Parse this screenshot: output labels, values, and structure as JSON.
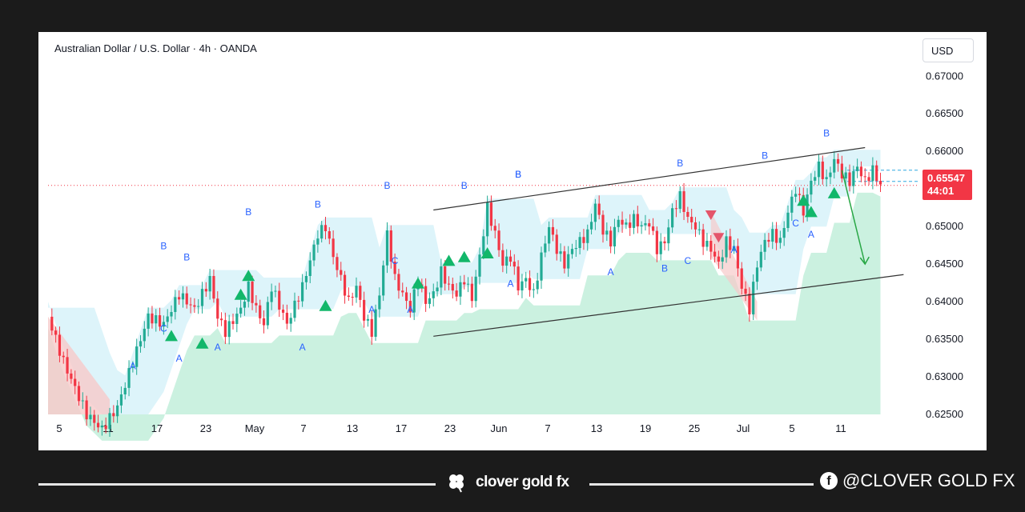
{
  "chart_title": "Australian Dollar / U.S. Dollar · 4h · OANDA",
  "currency_button": "USD",
  "price_tag": {
    "price": "0.65547",
    "countdown": "44:01",
    "color": "#f23645"
  },
  "footer": {
    "brand": "clover gold fx",
    "social": "@CLOVER GOLD FX"
  },
  "colors": {
    "up": "#22ab94",
    "down": "#f23645",
    "cloud_green": "#b9ecd6",
    "cloud_blue": "#d2f0f8",
    "cloud_red": "#f7c9c9",
    "label_blue": "#2962ff",
    "signal_green": "#12b76a"
  },
  "chart_data": {
    "type": "candlestick",
    "symbol": "AUDUSD",
    "timeframe": "4h",
    "ylim": [
      0.625,
      0.6712
    ],
    "y_ticks": [
      "0.67000",
      "0.66500",
      "0.66000",
      "0.65500",
      "0.65000",
      "0.64500",
      "0.64000",
      "0.63500",
      "0.63000",
      "0.62500"
    ],
    "x_ticks": [
      "5",
      "11",
      "17",
      "23",
      "May",
      "7",
      "13",
      "17",
      "23",
      "Jun",
      "7",
      "13",
      "19",
      "25",
      "Jul",
      "5",
      "11"
    ],
    "price_path": [
      [
        0,
        0.638
      ],
      [
        2,
        0.632
      ],
      [
        5,
        0.625
      ],
      [
        7,
        0.623
      ],
      [
        9,
        0.626
      ],
      [
        11,
        0.632
      ],
      [
        13,
        0.638
      ],
      [
        15,
        0.637
      ],
      [
        17,
        0.641
      ],
      [
        19,
        0.639
      ],
      [
        21,
        0.643
      ],
      [
        22,
        0.638
      ],
      [
        23,
        0.636
      ],
      [
        25,
        0.639
      ],
      [
        26,
        0.642
      ],
      [
        27,
        0.639
      ],
      [
        28,
        0.637
      ],
      [
        29,
        0.642
      ],
      [
        31,
        0.637
      ],
      [
        33,
        0.642
      ],
      [
        35,
        0.649
      ],
      [
        36,
        0.65
      ],
      [
        37,
        0.646
      ],
      [
        38,
        0.643
      ],
      [
        39,
        0.64
      ],
      [
        40,
        0.642
      ],
      [
        41,
        0.638
      ],
      [
        42,
        0.636
      ],
      [
        43,
        0.641
      ],
      [
        44,
        0.649
      ],
      [
        45,
        0.643
      ],
      [
        46,
        0.641
      ],
      [
        47,
        0.639
      ],
      [
        48,
        0.643
      ],
      [
        49,
        0.64
      ],
      [
        50,
        0.641
      ],
      [
        51,
        0.644
      ],
      [
        52,
        0.642
      ],
      [
        53,
        0.641
      ],
      [
        54,
        0.643
      ],
      [
        55,
        0.6405
      ],
      [
        56,
        0.646
      ],
      [
        57,
        0.6525
      ],
      [
        58,
        0.649
      ],
      [
        59,
        0.645
      ],
      [
        60,
        0.646
      ],
      [
        61,
        0.642
      ],
      [
        62,
        0.643
      ],
      [
        63,
        0.641
      ],
      [
        64,
        0.646
      ],
      [
        65,
        0.65
      ],
      [
        66,
        0.647
      ],
      [
        67,
        0.645
      ],
      [
        68,
        0.647
      ],
      [
        69,
        0.648
      ],
      [
        70,
        0.649
      ],
      [
        71,
        0.653
      ],
      [
        72,
        0.6495
      ],
      [
        73,
        0.648
      ],
      [
        74,
        0.651
      ],
      [
        75,
        0.65
      ],
      [
        76,
        0.651
      ],
      [
        77,
        0.65
      ],
      [
        78,
        0.6505
      ],
      [
        79,
        0.647
      ],
      [
        80,
        0.648
      ],
      [
        81,
        0.652
      ],
      [
        82,
        0.654
      ],
      [
        83,
        0.651
      ],
      [
        84,
        0.65
      ],
      [
        85,
        0.648
      ],
      [
        86,
        0.647
      ],
      [
        87,
        0.645
      ],
      [
        88,
        0.648
      ],
      [
        89,
        0.647
      ],
      [
        90,
        0.642
      ],
      [
        91,
        0.639
      ],
      [
        92,
        0.645
      ],
      [
        93,
        0.648
      ],
      [
        94,
        0.649
      ],
      [
        95,
        0.648
      ],
      [
        96,
        0.652
      ],
      [
        97,
        0.655
      ],
      [
        98,
        0.652
      ],
      [
        99,
        0.656
      ],
      [
        100,
        0.658
      ],
      [
        101,
        0.656
      ],
      [
        102,
        0.659
      ],
      [
        103,
        0.657
      ],
      [
        104,
        0.656
      ],
      [
        105,
        0.658
      ],
      [
        106,
        0.656
      ],
      [
        107,
        0.6575
      ],
      [
        108,
        0.6555
      ]
    ],
    "wave_labels": [
      {
        "text": "B",
        "x": 15,
        "y": 0.647,
        "color": "#2962ff"
      },
      {
        "text": "B",
        "x": 18,
        "y": 0.6455,
        "color": "#2962ff"
      },
      {
        "text": "C",
        "x": 15,
        "y": 0.636,
        "color": "#2962ff"
      },
      {
        "text": "A",
        "x": 11,
        "y": 0.631,
        "color": "#2962ff"
      },
      {
        "text": "A",
        "x": 17,
        "y": 0.632,
        "color": "#2962ff"
      },
      {
        "text": "A",
        "x": 22,
        "y": 0.6335,
        "color": "#2962ff"
      },
      {
        "text": "B",
        "x": 26,
        "y": 0.6515,
        "color": "#2962ff"
      },
      {
        "text": "B",
        "x": 35,
        "y": 0.6525,
        "color": "#2962ff"
      },
      {
        "text": "A",
        "x": 33,
        "y": 0.6335,
        "color": "#2962ff"
      },
      {
        "text": "B",
        "x": 44,
        "y": 0.655,
        "color": "#2962ff"
      },
      {
        "text": "A",
        "x": 42,
        "y": 0.6385,
        "color": "#2962ff"
      },
      {
        "text": "C",
        "x": 45,
        "y": 0.645,
        "color": "#2962ff"
      },
      {
        "text": "A",
        "x": 47,
        "y": 0.6385,
        "color": "#2962ff"
      },
      {
        "text": "B",
        "x": 54,
        "y": 0.655,
        "color": "#2962ff"
      },
      {
        "text": "B",
        "x": 61,
        "y": 0.6565,
        "color": "#2962ff"
      },
      {
        "text": "A",
        "x": 60,
        "y": 0.642,
        "color": "#2962ff"
      },
      {
        "text": "B",
        "x": 61,
        "y": 0.6565,
        "color": "#2962ff"
      },
      {
        "text": "A",
        "x": 73,
        "y": 0.6435,
        "color": "#2962ff"
      },
      {
        "text": "C",
        "x": 83,
        "y": 0.645,
        "color": "#2962ff"
      },
      {
        "text": "B",
        "x": 80,
        "y": 0.644,
        "color": "#2962ff"
      },
      {
        "text": "A",
        "x": 89,
        "y": 0.6465,
        "color": "#2962ff"
      },
      {
        "text": "B",
        "x": 93,
        "y": 0.659,
        "color": "#2962ff"
      },
      {
        "text": "C",
        "x": 97,
        "y": 0.65,
        "color": "#2962ff"
      },
      {
        "text": "A",
        "x": 99,
        "y": 0.6485,
        "color": "#2962ff"
      },
      {
        "text": "B",
        "x": 101,
        "y": 0.662,
        "color": "#2962ff"
      },
      {
        "text": "B",
        "x": 82,
        "y": 0.658,
        "color": "#2962ff"
      }
    ],
    "buy_signals": [
      [
        16,
        0.6355
      ],
      [
        20,
        0.6345
      ],
      [
        25,
        0.641
      ],
      [
        26,
        0.6435
      ],
      [
        36,
        0.6395
      ],
      [
        48,
        0.6425
      ],
      [
        52,
        0.6455
      ],
      [
        54,
        0.646
      ],
      [
        57,
        0.6465
      ],
      [
        98,
        0.6535
      ],
      [
        99,
        0.652
      ],
      [
        102,
        0.6545
      ]
    ],
    "sell_signals": [
      [
        86,
        0.6515
      ],
      [
        87,
        0.6485
      ]
    ],
    "channel_upper": [
      [
        50,
        0.6522
      ],
      [
        106,
        0.6605
      ]
    ],
    "channel_lower": [
      [
        50,
        0.6354
      ],
      [
        111,
        0.6436
      ]
    ],
    "projection_arrow": [
      [
        103,
        0.6575
      ],
      [
        106,
        0.645
      ]
    ],
    "current_price": 0.65547
  }
}
